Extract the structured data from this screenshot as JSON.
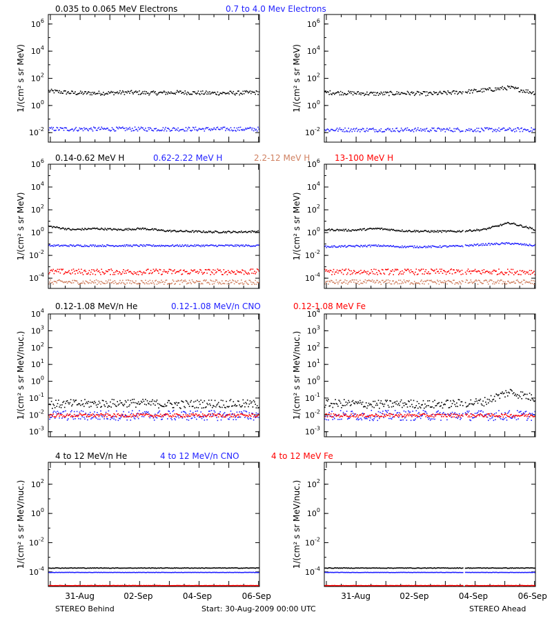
{
  "colors": {
    "black": "#000000",
    "blue": "#1f1fff",
    "salmon": "#d08060",
    "red": "#ff0000"
  },
  "rows": [
    {
      "legend": [
        {
          "text": "0.035 to 0.065 MeV Electrons",
          "color": "#000000"
        },
        {
          "text": "0.7 to 4.0 Mev Electrons",
          "color": "#1f1fff"
        }
      ],
      "ylabel": "1/(cm² s sr MeV)"
    },
    {
      "legend": [
        {
          "text": "0.14-0.62 MeV H",
          "color": "#000000"
        },
        {
          "text": "0.62-2.22 MeV H",
          "color": "#1f1fff"
        },
        {
          "text": "2.2-12 MeV H",
          "color": "#d08060"
        },
        {
          "text": "13-100 MeV H",
          "color": "#ff0000"
        }
      ],
      "ylabel": "1/(cm² s sr MeV)"
    },
    {
      "legend": [
        {
          "text": "0.12-1.08 MeV/n He",
          "color": "#000000"
        },
        {
          "text": "0.12-1.08 MeV/n CNO",
          "color": "#1f1fff"
        },
        {
          "text": "0.12-1.08 MeV Fe",
          "color": "#ff0000"
        }
      ],
      "ylabel": "1/(cm² s sr MeV/nuc.)"
    },
    {
      "legend": [
        {
          "text": "4 to 12 MeV/n He",
          "color": "#000000"
        },
        {
          "text": "4 to 12 MeV/n CNO",
          "color": "#1f1fff"
        },
        {
          "text": "4 to 12 MeV Fe",
          "color": "#ff0000"
        }
      ],
      "ylabel": "1/(cm² s sr MeV/nuc.)"
    }
  ],
  "footer": {
    "left": "STEREO Behind",
    "center": "Start: 30-Aug-2009 00:00 UTC",
    "right": "STEREO Ahead"
  },
  "chart_data": [
    {
      "type": "scatter",
      "spacecraft": "STEREO Behind",
      "row": 0,
      "x_ticks": [
        "31-Aug",
        "02-Sep",
        "04-Sep",
        "06-Sep"
      ],
      "y_scale": "log",
      "y_tick_labels": [
        "10^6",
        "10^4",
        "10^2",
        "10^0",
        "10^-2"
      ],
      "ylim_log10": [
        -2.7,
        6.7
      ],
      "series": [
        {
          "name": "0.035 to 0.065 MeV Electrons",
          "color": "#000000",
          "log10_level": [
            1.1,
            0.95,
            0.95,
            1.0,
            0.95,
            1.0,
            0.95,
            0.95,
            1.0
          ],
          "scatter_log10": 0.15
        },
        {
          "name": "0.7 to 4.0 Mev Electrons",
          "color": "#1f1fff",
          "log10_level": [
            -1.7,
            -1.7,
            -1.7,
            -1.7,
            -1.7,
            -1.7,
            -1.7,
            -1.7,
            -1.7
          ],
          "scatter_log10": 0.15
        }
      ]
    },
    {
      "type": "scatter",
      "spacecraft": "STEREO Ahead",
      "row": 0,
      "x_ticks": [
        "31-Aug",
        "02-Sep",
        "04-Sep",
        "06-Sep"
      ],
      "y_scale": "log",
      "y_tick_labels": [
        "10^6",
        "10^4",
        "10^2",
        "10^0",
        "10^-2"
      ],
      "ylim_log10": [
        -2.7,
        6.7
      ],
      "series": [
        {
          "name": "0.035 to 0.065 MeV Electrons",
          "color": "#000000",
          "log10_level": [
            1.0,
            0.95,
            0.9,
            0.95,
            0.9,
            1.0,
            1.15,
            1.35,
            0.95
          ],
          "scatter_log10": 0.15
        },
        {
          "name": "0.7 to 4.0 Mev Electrons",
          "color": "#1f1fff",
          "log10_level": [
            -1.75,
            -1.75,
            -1.75,
            -1.75,
            -1.75,
            -1.75,
            -1.75,
            -1.75,
            -1.75
          ],
          "scatter_log10": 0.15
        }
      ]
    },
    {
      "type": "scatter",
      "spacecraft": "STEREO Behind",
      "row": 1,
      "x_ticks": [
        "31-Aug",
        "02-Sep",
        "04-Sep",
        "06-Sep"
      ],
      "y_scale": "log",
      "y_tick_labels": [
        "10^6",
        "10^4",
        "10^2",
        "10^0",
        "10^-2",
        "10^-4"
      ],
      "ylim_log10": [
        -4.9,
        6.0
      ],
      "series": [
        {
          "name": "0.14-0.62 MeV H",
          "color": "#000000",
          "log10_level": [
            0.6,
            0.3,
            0.4,
            0.3,
            0.4,
            0.2,
            0.15,
            0.1,
            0.1,
            0.15
          ],
          "scatter_log10": 0.08
        },
        {
          "name": "0.62-2.22 MeV H",
          "color": "#1f1fff",
          "log10_level": [
            -1.1,
            -1.1,
            -1.1,
            -1.1,
            -1.1,
            -1.1,
            -1.1,
            -1.1,
            -1.1
          ],
          "scatter_log10": 0.08
        },
        {
          "name": "2.2-12 MeV H",
          "color": "#d08060",
          "log10_level": [
            -4.3,
            -4.3,
            -4.3,
            -4.3,
            -4.3,
            -4.3,
            -4.3,
            -4.3,
            -4.3
          ],
          "scatter_log10": 0.2
        },
        {
          "name": "13-100 MeV H",
          "color": "#ff0000",
          "log10_level": [
            -3.4,
            -3.4,
            -3.4,
            -3.4,
            -3.4,
            -3.4,
            -3.4,
            -3.4,
            -3.4
          ],
          "scatter_log10": 0.25
        }
      ]
    },
    {
      "type": "scatter",
      "spacecraft": "STEREO Ahead",
      "row": 1,
      "x_ticks": [
        "31-Aug",
        "02-Sep",
        "04-Sep",
        "06-Sep"
      ],
      "y_scale": "log",
      "y_tick_labels": [
        "10^6",
        "10^4",
        "10^2",
        "10^0",
        "10^-2",
        "10^-4"
      ],
      "ylim_log10": [
        -4.9,
        6.0
      ],
      "series": [
        {
          "name": "0.14-0.62 MeV H",
          "color": "#000000",
          "log10_level": [
            0.3,
            0.25,
            0.4,
            0.2,
            0.15,
            0.15,
            0.3,
            0.9,
            0.3
          ],
          "scatter_log10": 0.08
        },
        {
          "name": "0.62-2.22 MeV H",
          "color": "#1f1fff",
          "log10_level": [
            -1.2,
            -1.15,
            -1.1,
            -1.2,
            -1.2,
            -1.15,
            -1.0,
            -0.9,
            -1.1
          ],
          "scatter_log10": 0.08
        },
        {
          "name": "2.2-12 MeV H",
          "color": "#d08060",
          "log10_level": [
            -4.3,
            -4.3,
            -4.3,
            -4.3,
            -4.3,
            -4.3,
            -4.3,
            -4.3,
            -4.3
          ],
          "scatter_log10": 0.2
        },
        {
          "name": "13-100 MeV H",
          "color": "#ff0000",
          "log10_level": [
            -3.4,
            -3.4,
            -3.4,
            -3.4,
            -3.4,
            -3.4,
            -3.4,
            -3.4,
            -3.4
          ],
          "scatter_log10": 0.25
        }
      ]
    },
    {
      "type": "scatter",
      "spacecraft": "STEREO Behind",
      "row": 2,
      "x_ticks": [
        "31-Aug",
        "02-Sep",
        "04-Sep",
        "06-Sep"
      ],
      "y_scale": "log",
      "y_tick_labels": [
        "10^4",
        "10^3",
        "10^2",
        "10^1",
        "10^0",
        "10^-1",
        "10^-2",
        "10^-3"
      ],
      "ylim_log10": [
        -3.3,
        4.0
      ],
      "series": [
        {
          "name": "0.12-1.08 MeV/n He",
          "color": "#000000",
          "log10_level": [
            -1.35,
            -1.3,
            -1.3,
            -1.25,
            -1.3,
            -1.35,
            -1.3,
            -1.3,
            -1.35
          ],
          "scatter_log10": 0.25
        },
        {
          "name": "0.12-1.08 MeV/n CNO",
          "color": "#1f1fff",
          "log10_level": [
            -2.0,
            -2.0,
            -2.0,
            -2.0,
            -2.0,
            -2.0,
            -2.0,
            -2.0,
            -2.0
          ],
          "scatter_log10": 0.3
        },
        {
          "name": "0.12-1.08 MeV Fe",
          "color": "#ff0000",
          "log10_level": [
            -2.0,
            -2.0,
            -2.0,
            -2.0,
            -2.0,
            -2.0,
            -2.0,
            -2.0,
            -2.0
          ],
          "scatter_log10": 0.1
        }
      ]
    },
    {
      "type": "scatter",
      "spacecraft": "STEREO Ahead",
      "row": 2,
      "x_ticks": [
        "31-Aug",
        "02-Sep",
        "04-Sep",
        "06-Sep"
      ],
      "y_scale": "log",
      "y_tick_labels": [
        "10^4",
        "10^3",
        "10^2",
        "10^1",
        "10^0",
        "10^-1",
        "10^-2",
        "10^-3"
      ],
      "ylim_log10": [
        -3.3,
        4.0
      ],
      "series": [
        {
          "name": "0.12-1.08 MeV/n He",
          "color": "#000000",
          "log10_level": [
            -1.3,
            -1.3,
            -1.35,
            -1.3,
            -1.35,
            -1.3,
            -1.2,
            -0.6,
            -1.0
          ],
          "scatter_log10": 0.25
        },
        {
          "name": "0.12-1.08 MeV/n CNO",
          "color": "#1f1fff",
          "log10_level": [
            -2.0,
            -2.0,
            -2.0,
            -2.0,
            -2.0,
            -2.0,
            -2.0,
            -2.0,
            -2.0
          ],
          "scatter_log10": 0.3
        },
        {
          "name": "0.12-1.08 MeV Fe",
          "color": "#ff0000",
          "log10_level": [
            -2.0,
            -2.0,
            -2.0,
            -2.0,
            -2.0,
            -2.0,
            -2.0,
            -2.0,
            -2.0
          ],
          "scatter_log10": 0.1
        }
      ]
    },
    {
      "type": "scatter",
      "spacecraft": "STEREO Behind",
      "row": 3,
      "x_ticks": [
        "31-Aug",
        "02-Sep",
        "04-Sep",
        "06-Sep"
      ],
      "y_scale": "log",
      "y_tick_labels": [
        "10^2",
        "10^0",
        "10^-2",
        "10^-4"
      ],
      "ylim_log10": [
        -5.0,
        3.5
      ],
      "series": [
        {
          "name": "4 to 12 MeV/n He",
          "color": "#000000",
          "log10_level": [
            -3.7,
            -3.7,
            -3.7,
            -3.7,
            -3.7,
            -3.7,
            -3.7,
            -3.7,
            -3.7
          ],
          "scatter_log10": 0.02
        },
        {
          "name": "4 to 12 MeV/n CNO",
          "color": "#1f1fff",
          "log10_level": [
            -4.0,
            -4.0,
            -4.0,
            -4.0,
            -4.0,
            -4.0,
            -4.0,
            -4.0,
            -4.0
          ],
          "scatter_log10": 0.01
        },
        {
          "name": "4 to 12 MeV Fe",
          "color": "#ff0000",
          "log10_level": [
            -4.9,
            -4.9,
            -4.9,
            -4.9,
            -4.9,
            -4.9,
            -4.9,
            -4.9,
            -4.9
          ],
          "scatter_log10": 0.01
        }
      ]
    },
    {
      "type": "scatter",
      "spacecraft": "STEREO Ahead",
      "row": 3,
      "x_ticks": [
        "31-Aug",
        "02-Sep",
        "04-Sep",
        "06-Sep"
      ],
      "y_scale": "log",
      "y_tick_labels": [
        "10^2",
        "10^0",
        "10^-2",
        "10^-4"
      ],
      "ylim_log10": [
        -5.0,
        3.5
      ],
      "series": [
        {
          "name": "4 to 12 MeV/n He",
          "color": "#000000",
          "log10_level": [
            -3.7,
            -3.7,
            -3.7,
            -3.7,
            -3.7,
            -3.7,
            -3.7,
            -3.7,
            -3.7
          ],
          "scatter_log10": 0.02
        },
        {
          "name": "4 to 12 MeV/n CNO",
          "color": "#1f1fff",
          "log10_level": [
            -4.0,
            -4.0,
            -4.0,
            -4.0,
            -4.0,
            -4.0,
            -4.0,
            -4.0,
            -4.0
          ],
          "scatter_log10": 0.01
        },
        {
          "name": "4 to 12 MeV Fe",
          "color": "#ff0000",
          "log10_level": [
            -4.9,
            -4.9,
            -4.9,
            -4.9,
            -4.9,
            -4.9,
            -4.9,
            -4.9,
            -4.9
          ],
          "scatter_log10": 0.01
        }
      ]
    }
  ]
}
